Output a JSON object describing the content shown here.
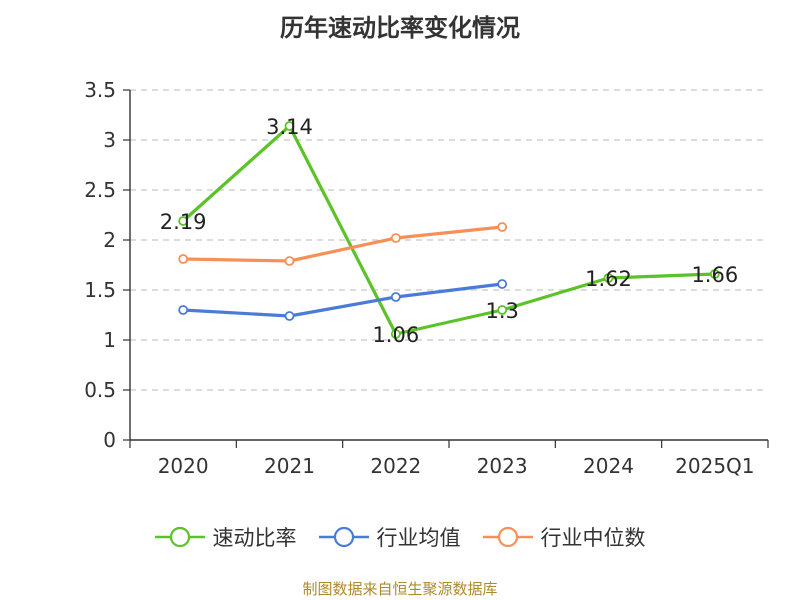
{
  "chart_data": {
    "type": "line",
    "title": "历年速动比率变化情况",
    "categories": [
      "2020",
      "2021",
      "2022",
      "2023",
      "2024",
      "2025Q1"
    ],
    "ylim": [
      0,
      3.5
    ],
    "yticks": [
      0,
      0.5,
      1,
      1.5,
      2,
      2.5,
      3,
      3.5
    ],
    "ytick_labels": [
      "0",
      "0.5",
      "1",
      "1.5",
      "2",
      "2.5",
      "3",
      "3.5"
    ],
    "xlabel": "",
    "ylabel": "",
    "grid": true,
    "legend_placement": "bottom-center",
    "series": [
      {
        "name": "速动比率",
        "color": "#5bc227",
        "values": [
          2.19,
          3.14,
          1.06,
          1.3,
          1.62,
          1.66
        ],
        "data_labels": [
          "2.19",
          "3.14",
          "1.06",
          "1.3",
          "1.62",
          "1.66"
        ],
        "show_labels": true
      },
      {
        "name": "行业均值",
        "color": "#4b7bd8",
        "values": [
          1.3,
          1.24,
          1.43,
          1.56,
          null,
          null
        ],
        "show_labels": false
      },
      {
        "name": "行业中位数",
        "color": "#f79056",
        "values": [
          1.81,
          1.79,
          2.02,
          2.13,
          null,
          null
        ],
        "show_labels": false
      }
    ]
  },
  "footer": {
    "source": "制图数据来自恒生聚源数据库"
  }
}
